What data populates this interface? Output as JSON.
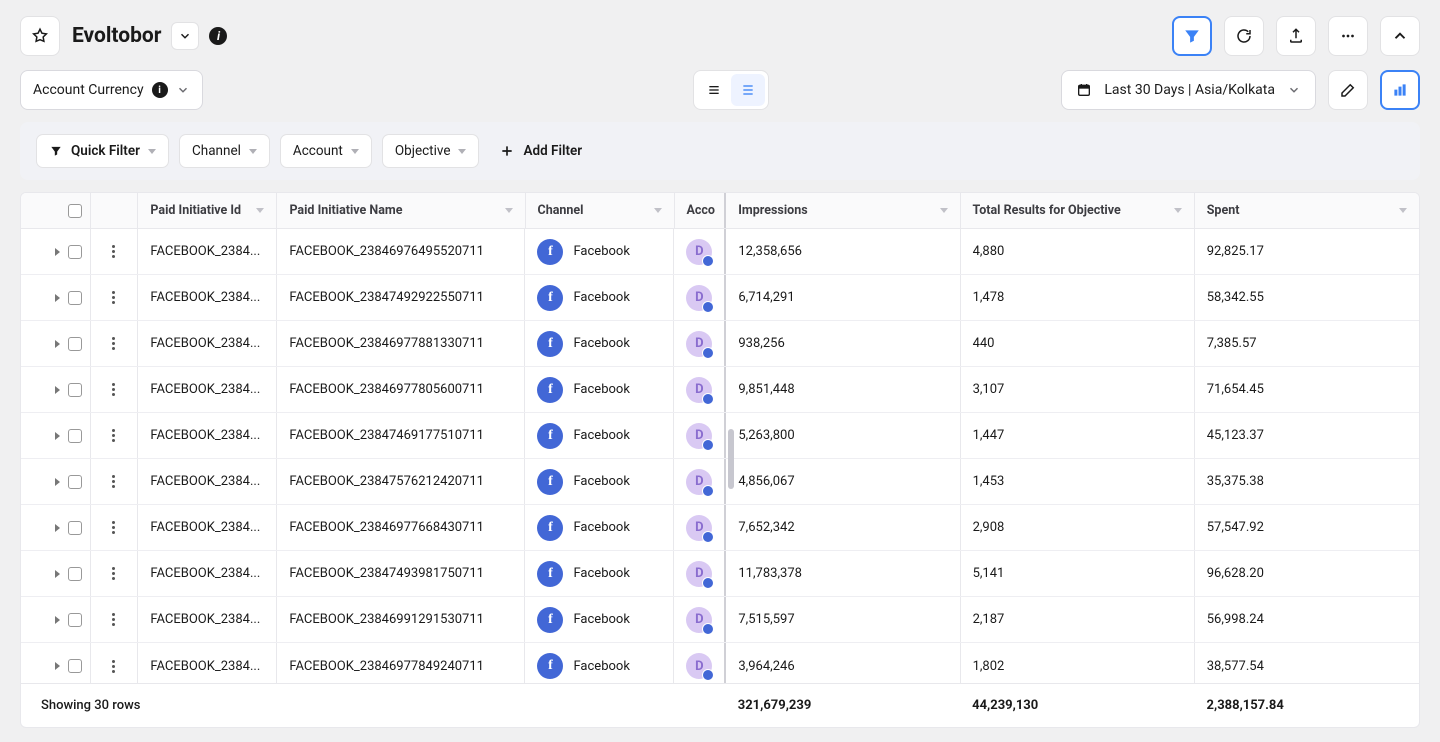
{
  "header": {
    "title": "Evoltobor",
    "account_currency_label": "Account Currency",
    "date_label": "Last 30 Days | Asia/Kolkata"
  },
  "filters": {
    "quick_filter_label": "Quick Filter",
    "channel_label": "Channel",
    "account_label": "Account",
    "objective_label": "Objective",
    "add_filter_label": "Add Filter"
  },
  "table": {
    "columns": {
      "paid_initiative_id": "Paid Initiative Id",
      "paid_initiative_name": "Paid Initiative Name",
      "channel": "Channel",
      "account": "Acco",
      "impressions": "Impressions",
      "results": "Total Results for Objective",
      "spent": "Spent"
    },
    "channel_name": "Facebook",
    "account_initial": "D",
    "rows": [
      {
        "id": "FACEBOOK_2384...",
        "name": "FACEBOOK_23846976495520711",
        "impressions": "12,358,656",
        "results": "4,880",
        "spent": "92,825.17"
      },
      {
        "id": "FACEBOOK_2384...",
        "name": "FACEBOOK_23847492922550711",
        "impressions": "6,714,291",
        "results": "1,478",
        "spent": "58,342.55"
      },
      {
        "id": "FACEBOOK_2384...",
        "name": "FACEBOOK_23846977881330711",
        "impressions": "938,256",
        "results": "440",
        "spent": "7,385.57"
      },
      {
        "id": "FACEBOOK_2384...",
        "name": "FACEBOOK_23846977805600711",
        "impressions": "9,851,448",
        "results": "3,107",
        "spent": "71,654.45"
      },
      {
        "id": "FACEBOOK_2384...",
        "name": "FACEBOOK_23847469177510711",
        "impressions": "5,263,800",
        "results": "1,447",
        "spent": "45,123.37"
      },
      {
        "id": "FACEBOOK_2384...",
        "name": "FACEBOOK_23847576212420711",
        "impressions": "4,856,067",
        "results": "1,453",
        "spent": "35,375.38"
      },
      {
        "id": "FACEBOOK_2384...",
        "name": "FACEBOOK_23846977668430711",
        "impressions": "7,652,342",
        "results": "2,908",
        "spent": "57,547.92"
      },
      {
        "id": "FACEBOOK_2384...",
        "name": "FACEBOOK_23847493981750711",
        "impressions": "11,783,378",
        "results": "5,141",
        "spent": "96,628.20"
      },
      {
        "id": "FACEBOOK_2384...",
        "name": "FACEBOOK_23846991291530711",
        "impressions": "7,515,597",
        "results": "2,187",
        "spent": "56,998.24"
      },
      {
        "id": "FACEBOOK_2384...",
        "name": "FACEBOOK_23846977849240711",
        "impressions": "3,964,246",
        "results": "1,802",
        "spent": "38,577.54"
      }
    ],
    "footer": {
      "caption": "Showing 30 rows",
      "impressions_total": "321,679,239",
      "results_total": "44,239,130",
      "spent_total": "2,388,157.84"
    }
  },
  "colors": {
    "accent": "#3b82f6",
    "fb_blue": "#4267d6",
    "acct_bg": "#d9c9f3",
    "acct_fg": "#8a6dcf"
  }
}
